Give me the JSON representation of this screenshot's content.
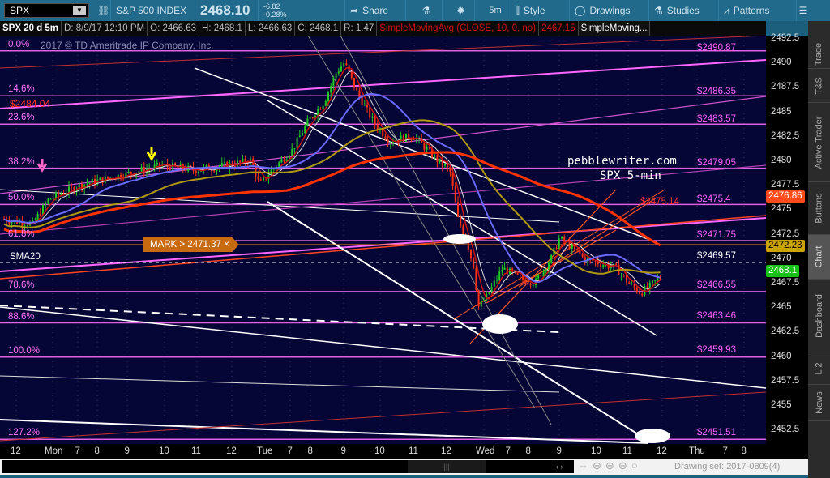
{
  "toolbar": {
    "symbol": "SPX",
    "name": "S&P 500 INDEX",
    "last": "2468.10",
    "change": "-6.82",
    "change_pct": "-0.28%",
    "share": "Share",
    "timeframe": "5m",
    "style": "Style",
    "drawings": "Drawings",
    "studies": "Studies",
    "patterns": "Patterns"
  },
  "infobar": {
    "title": "SPX 20 d 5m",
    "date": "D: 8/9/17 12:10 PM",
    "open": "O: 2466.63",
    "high": "H: 2468.1",
    "low": "L: 2466.63",
    "close": "C: 2468.1",
    "range": "R: 1.47",
    "study": "SimpleMovingAvg (CLOSE, 10, 0, no)",
    "study_value": "2467.15",
    "study2": "SimpleMoving..."
  },
  "copyright": "2017 © TD Ameritrade IP Company, Inc.",
  "watermark": {
    "line1": "pebblewriter.com",
    "line2": "SPX 5-min"
  },
  "mark": "MARK > 2471.37 ×",
  "fib_levels": [
    {
      "label": "0.0%",
      "price": 2491.2
    },
    {
      "label": "14.6%",
      "price": 2486.6
    },
    {
      "label": "23.6%",
      "price": 2483.7
    },
    {
      "label": "38.2%",
      "price": 2479.2
    },
    {
      "label": "50.0%",
      "price": 2475.5
    },
    {
      "label": "61.8%",
      "price": 2471.8
    },
    {
      "label": "78.6%",
      "price": 2466.6
    },
    {
      "label": "88.6%",
      "price": 2463.4
    },
    {
      "label": "100.0%",
      "price": 2459.9
    },
    {
      "label": "127.2%",
      "price": 2451.5
    }
  ],
  "sma_label": "SMA20",
  "left_price_tag": "$2484.04",
  "right_prices": [
    {
      "text": "$2490.87",
      "price": 2490.87,
      "color": "#ff66ff"
    },
    {
      "text": "$2486.35",
      "price": 2486.35,
      "color": "#ff66ff"
    },
    {
      "text": "$2483.57",
      "price": 2483.57,
      "color": "#ff66ff"
    },
    {
      "text": "$2479.05",
      "price": 2479.05,
      "color": "#ff66ff"
    },
    {
      "text": "$2475.14",
      "price": 2475.14,
      "color": "#ff3333"
    },
    {
      "text": "$2475.4",
      "price": 2475.4,
      "color": "#ff66ff"
    },
    {
      "text": "$2471.75",
      "price": 2471.75,
      "color": "#ff66ff"
    },
    {
      "text": "$2469.57",
      "price": 2469.57,
      "color": "#ffffff"
    },
    {
      "text": "$2466.55",
      "price": 2466.55,
      "color": "#ff66ff"
    },
    {
      "text": "$2463.46",
      "price": 2463.46,
      "color": "#ff66ff"
    },
    {
      "text": "$2459.93",
      "price": 2459.93,
      "color": "#ff66ff"
    },
    {
      "text": "$2451.51",
      "price": 2451.51,
      "color": "#ff66ff"
    }
  ],
  "price_axis": [
    "2492.5",
    "2490",
    "2487.5",
    "2485",
    "2482.5",
    "2480",
    "2477.5",
    "2475",
    "2472.5",
    "2470",
    "2467.5",
    "2465",
    "2462.5",
    "2460",
    "2457.5",
    "2455",
    "2452.5"
  ],
  "price_badges": [
    {
      "text": "2476.86",
      "price": 2476.86,
      "bg": "#ff4a1c",
      "fg": "#fff"
    },
    {
      "text": "2472.23",
      "price": 2472.23,
      "bg": "#c9a400",
      "fg": "#000"
    },
    {
      "text": "2468.1",
      "price": 2468.1,
      "bg": "#19c219",
      "fg": "#fff"
    }
  ],
  "time_axis": [
    "12",
    "Mon",
    "7",
    "8",
    "9",
    "10",
    "11",
    "12",
    "Tue",
    "7",
    "8",
    "9",
    "10",
    "11",
    "12",
    "Wed",
    "7",
    "8",
    "9",
    "10",
    "11",
    "12",
    "Thu",
    "7",
    "8"
  ],
  "drawing_set": "Drawing set: 2017-0809(4)",
  "sidebar": [
    "Trade",
    "T&S",
    "Active Trader",
    "Buttons",
    "Chart",
    "Dashboard",
    "L 2",
    "News"
  ],
  "active_tab": "Chart",
  "colors": {
    "background": "#050536",
    "fib": "#ff66ff",
    "up": "#22cc22",
    "down": "#ff3311",
    "sma10": "#cc1111",
    "sma50": "#6a6aff",
    "sma100": "#b09a10",
    "sma200": "#ff3300"
  }
}
